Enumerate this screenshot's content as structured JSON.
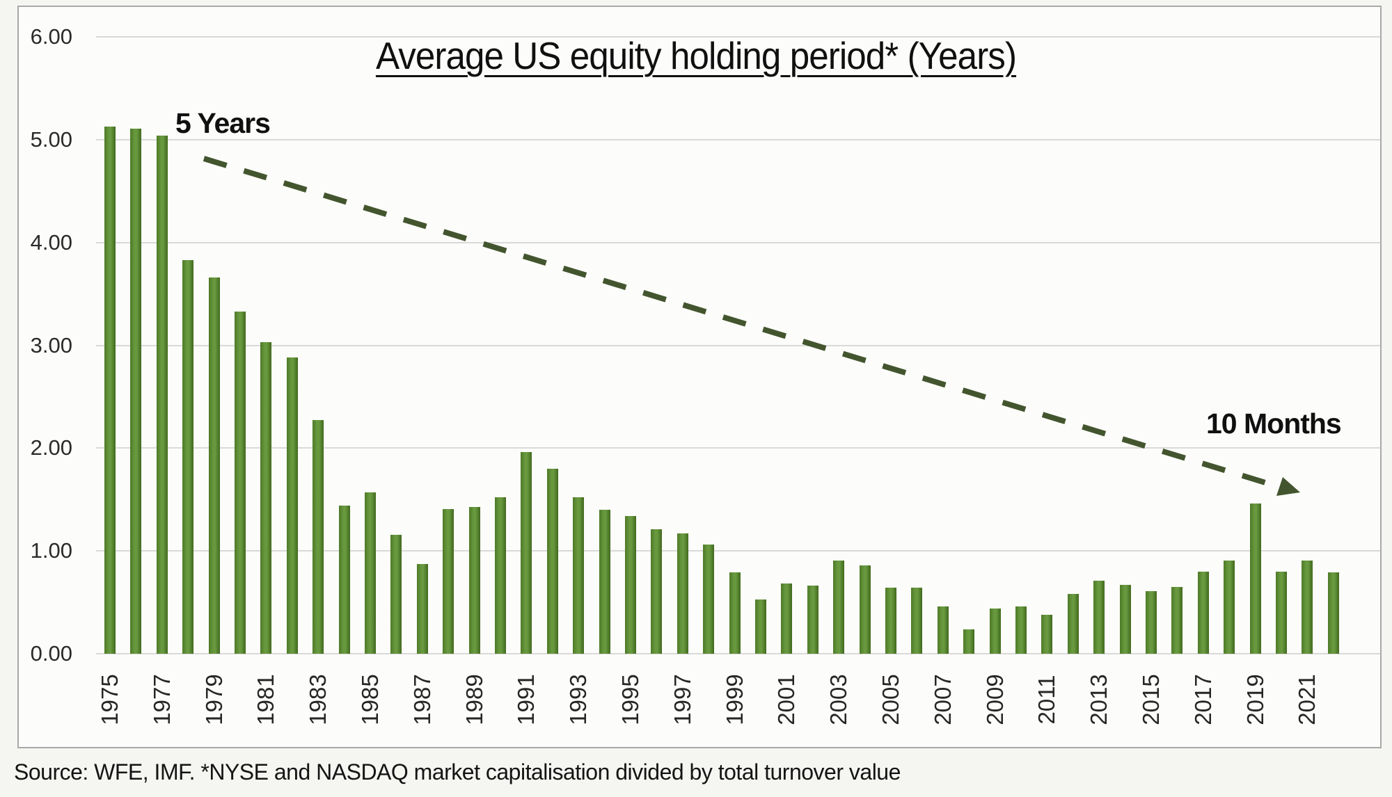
{
  "header": {
    "title": "Average US equity holding period* (Years)"
  },
  "annotations": {
    "start_label": "5 Years",
    "end_label": "10 Months"
  },
  "footer": {
    "source": "Source: WFE, IMF. *NYSE and NASDAQ market capitalisation divided by total turnover value"
  },
  "colors": {
    "bar_edge_dark": "#41691d",
    "bar_mid_light": "#68993f",
    "bar_left": "#4e7a27",
    "arrow": "#43552e",
    "gridline": "#d9d9d9",
    "frame_border": "#a9a9a9",
    "text": "#101010"
  },
  "chart_data": {
    "type": "bar",
    "title": "Average US equity holding period* (Years)",
    "xlabel": "",
    "ylabel": "",
    "ylim": [
      0,
      6
    ],
    "grid": true,
    "legend": false,
    "y_tick_labels": [
      "0.00",
      "1.00",
      "2.00",
      "3.00",
      "4.00",
      "5.00",
      "6.00"
    ],
    "x_tick_labels": [
      "1975",
      "1977",
      "1979",
      "1981",
      "1983",
      "1985",
      "1987",
      "1989",
      "1991",
      "1993",
      "1995",
      "1997",
      "1999",
      "2001",
      "2003",
      "2005",
      "2007",
      "2009",
      "2011",
      "2013",
      "2015",
      "2017",
      "2019",
      "2021"
    ],
    "categories": [
      1975,
      1976,
      1977,
      1978,
      1979,
      1980,
      1981,
      1982,
      1983,
      1984,
      1985,
      1986,
      1987,
      1988,
      1989,
      1990,
      1991,
      1992,
      1993,
      1994,
      1995,
      1996,
      1997,
      1998,
      1999,
      2000,
      2001,
      2002,
      2003,
      2004,
      2005,
      2006,
      2007,
      2008,
      2009,
      2010,
      2011,
      2012,
      2013,
      2014,
      2015,
      2016,
      2017,
      2018,
      2019,
      2020,
      2021,
      2022
    ],
    "values": [
      5.13,
      5.11,
      5.04,
      3.83,
      3.66,
      3.33,
      3.03,
      2.88,
      2.27,
      1.44,
      1.57,
      1.16,
      0.87,
      1.41,
      1.43,
      1.52,
      1.96,
      1.8,
      1.52,
      1.4,
      1.34,
      1.21,
      1.17,
      1.06,
      0.79,
      0.53,
      0.68,
      0.66,
      0.91,
      0.86,
      0.64,
      0.64,
      0.46,
      0.24,
      0.44,
      0.46,
      0.38,
      0.58,
      0.71,
      0.67,
      0.61,
      0.65,
      0.8,
      0.91,
      1.46,
      0.8,
      0.91,
      0.79
    ],
    "annotations": [
      {
        "text": "5 Years",
        "position": "above first bars"
      },
      {
        "text": "10 Months",
        "position": "right side, pointing at last bars",
        "connector": "dashed-arrow"
      }
    ]
  }
}
